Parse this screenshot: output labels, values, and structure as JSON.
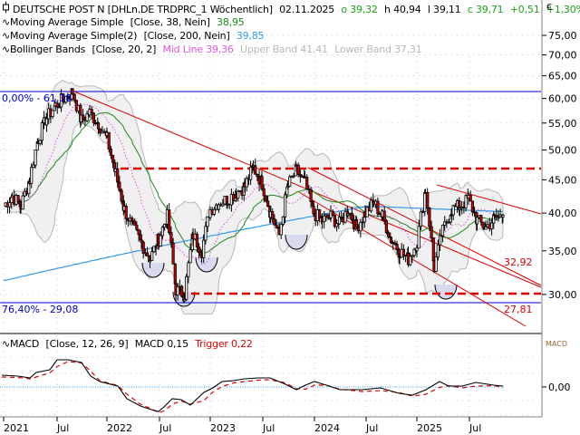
{
  "header": {
    "symbol_icon": "candlestick-icon",
    "title": "DEUTSCHE POST N [DHLn.DE TRDPRC_1 Wöchentlich]",
    "date": "02.11.2025",
    "open": "o 39,32",
    "high": "h 40,94",
    "low": "l 39,11",
    "close": "c 39,71",
    "change": "+0,51",
    "change_pct": "+1,30%",
    "currency": "€"
  },
  "indicators": [
    {
      "icon": "line-icon",
      "name": "Moving Average Simple",
      "params": "[Close, 38, Nein]",
      "value": "38,95",
      "color": "#1a8a1a"
    },
    {
      "icon": "line-icon",
      "name": "Moving Average Simple(2)",
      "params": "[Close, 200, Nein]",
      "value": "39,85",
      "color": "#3399ee"
    },
    {
      "icon": "line-icon",
      "name": "Bollinger Bands",
      "params": "[Close, 20, 2]",
      "mid_label": "Mid Line 39,36",
      "upper_label": "Upper Band 41,41",
      "lower_label": "Lower Band 37,31",
      "mid_color": "#dd55dd",
      "band_color": "#b8b8b8"
    }
  ],
  "macd_legend": {
    "icon": "line-icon",
    "name": "MACD",
    "params": "[Close, 12, 26, 9]",
    "macd_value": "MACD 0,15",
    "trigger_value": "Trigger 0,22",
    "axis_title": "MACD",
    "zero_label": "0,00"
  },
  "annotations": {
    "fib_top": "0,00% - 61,38",
    "fib_bottom": "76,40% - 29,08",
    "target_1": "32,92",
    "target_2": "27,81"
  },
  "colors": {
    "up_candle": "#ffffff",
    "down_candle": "#cc0000",
    "trendline": "#dd0000",
    "fib_line": "#0000cc",
    "sma38": "#1a8a1a",
    "sma200": "#3399ee",
    "boll_mid": "#dd55dd",
    "boll_fill": "#f0f0f0",
    "macd": "#000000",
    "trigger": "#dd0000",
    "zero_line": "#3399ee",
    "grid": "#c8c8c8",
    "half_circle": "#d8daf0"
  },
  "chart_data": [
    {
      "type": "candlestick",
      "title": "DEUTSCHE POST N [DHLn.DE TRDPRC_1 Wöchentlich]",
      "xlabel": "",
      "ylabel": "€",
      "scale": "log",
      "ylim": [
        27.5,
        77
      ],
      "y_ticks": [
        "75,00",
        "70,00",
        "65,00",
        "60,00",
        "55,00",
        "50,00",
        "45,00",
        "40,00",
        "35,00",
        "30,00"
      ],
      "x_ticks": [
        "2021",
        "Jul",
        "2022",
        "Jul",
        "2023",
        "Jul",
        "2024",
        "Jul",
        "2025",
        "Jul"
      ],
      "grid": true,
      "last_bar": {
        "date": "02.11.2025",
        "open": 39.32,
        "high": 40.94,
        "low": 39.11,
        "close": 39.71,
        "change": 0.51,
        "change_pct": 1.3
      },
      "price_path": [
        [
          "2021-01",
          41.0
        ],
        [
          "2021-02",
          42.5
        ],
        [
          "2021-03",
          41.0
        ],
        [
          "2021-04",
          45.0
        ],
        [
          "2021-05",
          52.0
        ],
        [
          "2021-06",
          56.0
        ],
        [
          "2021-07",
          58.5
        ],
        [
          "2021-08",
          60.0
        ],
        [
          "2021-09",
          61.38
        ],
        [
          "2021-10",
          55.5
        ],
        [
          "2021-11",
          57.0
        ],
        [
          "2021-12",
          55.0
        ],
        [
          "2022-01",
          52.0
        ],
        [
          "2022-02",
          46.0
        ],
        [
          "2022-03",
          40.5
        ],
        [
          "2022-04",
          38.0
        ],
        [
          "2022-05",
          36.0
        ],
        [
          "2022-06",
          34.0
        ],
        [
          "2022-07",
          36.5
        ],
        [
          "2022-08",
          39.5
        ],
        [
          "2022-09",
          30.5
        ],
        [
          "2022-10",
          30.0
        ],
        [
          "2022-11",
          37.0
        ],
        [
          "2022-12",
          35.0
        ],
        [
          "2023-01",
          40.5
        ],
        [
          "2023-02",
          41.5
        ],
        [
          "2023-03",
          42.0
        ],
        [
          "2023-04",
          43.0
        ],
        [
          "2023-05",
          44.0
        ],
        [
          "2023-06",
          47.0
        ],
        [
          "2023-07",
          44.5
        ],
        [
          "2023-08",
          40.0
        ],
        [
          "2023-09",
          37.0
        ],
        [
          "2023-10",
          44.0
        ],
        [
          "2023-11",
          46.5
        ],
        [
          "2023-12",
          44.5
        ],
        [
          "2024-01",
          40.0
        ],
        [
          "2024-02",
          39.0
        ],
        [
          "2024-03",
          39.5
        ],
        [
          "2024-04",
          38.5
        ],
        [
          "2024-05",
          40.5
        ],
        [
          "2024-06",
          38.0
        ],
        [
          "2024-07",
          40.0
        ],
        [
          "2024-08",
          41.5
        ],
        [
          "2024-09",
          39.5
        ],
        [
          "2024-10",
          36.5
        ],
        [
          "2024-11",
          35.0
        ],
        [
          "2024-12",
          34.0
        ],
        [
          "2025-01",
          36.0
        ],
        [
          "2025-02",
          43.5
        ],
        [
          "2025-03",
          33.0
        ],
        [
          "2025-04",
          37.5
        ],
        [
          "2025-05",
          40.5
        ],
        [
          "2025-06",
          41.0
        ],
        [
          "2025-07",
          42.0
        ],
        [
          "2025-08",
          39.0
        ],
        [
          "2025-09",
          38.0
        ],
        [
          "2025-10",
          39.2
        ],
        [
          "2025-11",
          39.71
        ]
      ],
      "horizontal_lines": [
        {
          "label": "0,00% - 61,38",
          "value": 61.38,
          "color": "#0000cc",
          "style": "solid"
        },
        {
          "label": "76,40% - 29,08",
          "value": 29.08,
          "color": "#0000cc",
          "style": "solid"
        },
        {
          "label": "resistance",
          "value": 47.0,
          "color": "#dd0000",
          "style": "dashed"
        },
        {
          "label": "support",
          "value": 30.0,
          "color": "#dd0000",
          "style": "dashed"
        }
      ],
      "trend_channel_labels": [
        "32,92",
        "27,81"
      ],
      "indicators": {
        "sma38_last": 38.95,
        "sma200_last": 39.85,
        "bollinger": {
          "mid": 39.36,
          "upper": 41.41,
          "lower": 37.31
        }
      }
    },
    {
      "type": "line",
      "title": "MACD [Close, 12, 26, 9]",
      "series": [
        {
          "name": "MACD",
          "last": 0.15
        },
        {
          "name": "Trigger",
          "last": 0.22
        }
      ],
      "y_ticks": [
        "0,00"
      ],
      "x_ticks": [
        "2021",
        "Jul",
        "2022",
        "Jul",
        "2023",
        "Jul",
        "2024",
        "Jul",
        "2025",
        "Jul"
      ]
    }
  ]
}
